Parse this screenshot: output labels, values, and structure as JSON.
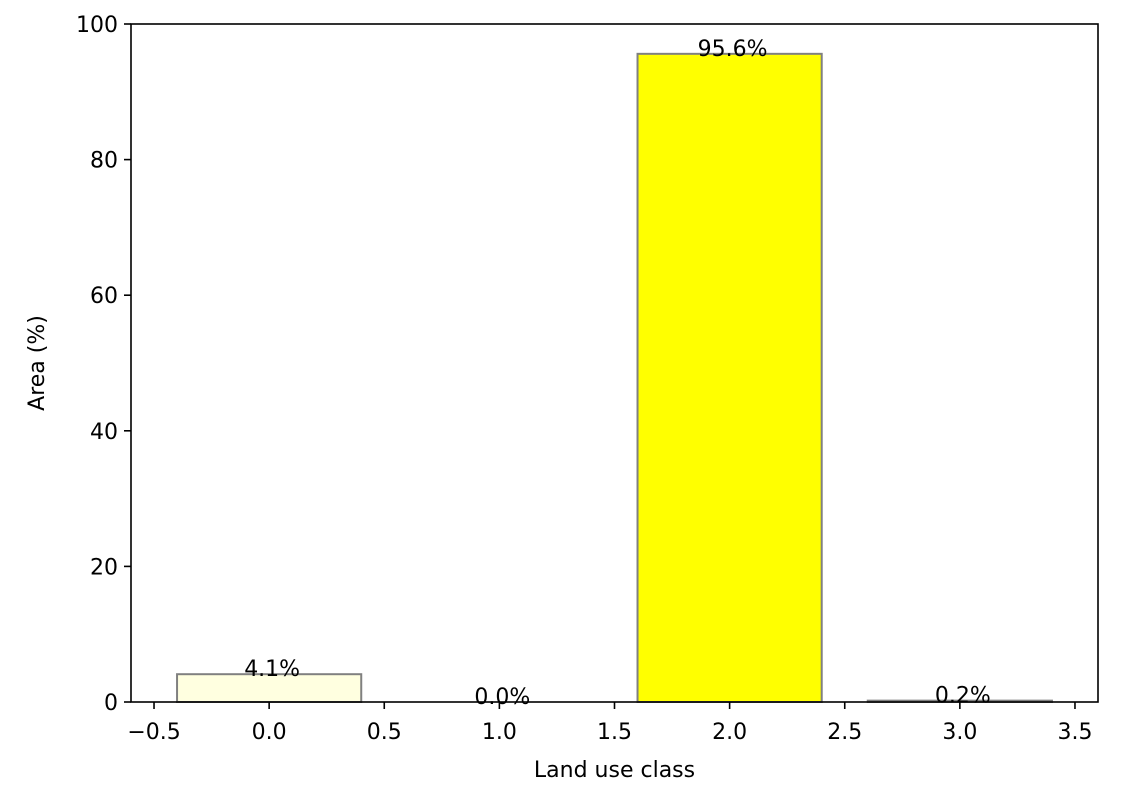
{
  "chart_data": {
    "type": "bar",
    "xlabel": "Land use class",
    "ylabel": "Area (%)",
    "xlim": [
      -0.6,
      3.6
    ],
    "ylim": [
      0,
      100
    ],
    "xticks": [
      -0.5,
      0.0,
      0.5,
      1.0,
      1.5,
      2.0,
      2.5,
      3.0,
      3.5
    ],
    "xtick_labels": [
      "−0.5",
      "0.0",
      "0.5",
      "1.0",
      "1.5",
      "2.0",
      "2.5",
      "3.0",
      "3.5"
    ],
    "yticks": [
      0,
      20,
      40,
      60,
      80,
      100
    ],
    "ytick_labels": [
      "0",
      "20",
      "40",
      "60",
      "80",
      "100"
    ],
    "grid": false,
    "bar_width": 0.8,
    "edge_color": "#808080",
    "bars": [
      {
        "x": 0,
        "value": 4.1,
        "label": "4.1%",
        "color": "#ffffe0"
      },
      {
        "x": 1,
        "value": 0.0,
        "label": "0.0%",
        "color": "#ffffcc"
      },
      {
        "x": 2,
        "value": 95.6,
        "label": "95.6%",
        "color": "#ffff00"
      },
      {
        "x": 3,
        "value": 0.2,
        "label": "0.2%",
        "color": "#e6e6e6"
      }
    ]
  }
}
